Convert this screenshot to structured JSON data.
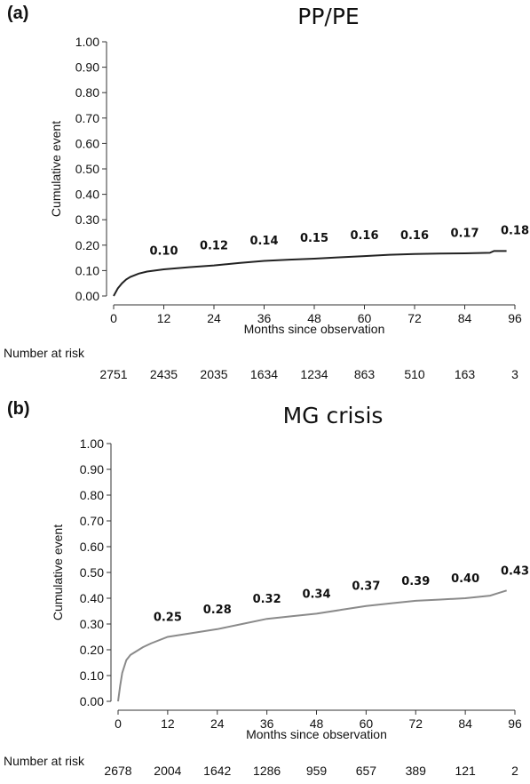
{
  "chart_data": [
    {
      "type": "line",
      "panel_label": "(a)",
      "title": "PP/PE",
      "xlabel": "Months since observation",
      "ylabel": "Cumulative event",
      "xlim": [
        0,
        96
      ],
      "ylim": [
        0,
        1
      ],
      "x_ticks": [
        "0",
        "12",
        "24",
        "36",
        "48",
        "60",
        "72",
        "84",
        "96"
      ],
      "y_ticks": [
        "0.00",
        "0.10",
        "0.20",
        "0.30",
        "0.40",
        "0.50",
        "0.60",
        "0.70",
        "0.80",
        "0.90",
        "1.00"
      ],
      "line_color": "#222222",
      "series": [
        {
          "x": [
            0,
            1,
            2,
            3,
            4,
            6,
            8,
            12,
            18,
            24,
            30,
            36,
            42,
            48,
            54,
            60,
            66,
            72,
            78,
            84,
            90,
            91,
            94
          ],
          "y": [
            0.0,
            0.03,
            0.05,
            0.065,
            0.075,
            0.088,
            0.096,
            0.105,
            0.113,
            0.12,
            0.13,
            0.138,
            0.143,
            0.147,
            0.152,
            0.157,
            0.162,
            0.165,
            0.167,
            0.168,
            0.17,
            0.177,
            0.177
          ]
        }
      ],
      "annotations": [
        {
          "x": 12,
          "y": 0.1,
          "text": "0.10"
        },
        {
          "x": 24,
          "y": 0.12,
          "text": "0.12"
        },
        {
          "x": 36,
          "y": 0.14,
          "text": "0.14"
        },
        {
          "x": 48,
          "y": 0.15,
          "text": "0.15"
        },
        {
          "x": 60,
          "y": 0.16,
          "text": "0.16"
        },
        {
          "x": 72,
          "y": 0.16,
          "text": "0.16"
        },
        {
          "x": 84,
          "y": 0.17,
          "text": "0.17"
        },
        {
          "x": 96,
          "y": 0.18,
          "text": "0.18"
        }
      ],
      "risk_table": {
        "label": "Number at risk",
        "values": [
          "2751",
          "2435",
          "2035",
          "1634",
          "1234",
          "863",
          "510",
          "163",
          "3"
        ]
      }
    },
    {
      "type": "line",
      "panel_label": "(b)",
      "title": "MG crisis",
      "xlabel": "Months since observation",
      "ylabel": "Cumulative event",
      "xlim": [
        0,
        96
      ],
      "ylim": [
        0,
        1
      ],
      "x_ticks": [
        "0",
        "12",
        "24",
        "36",
        "48",
        "60",
        "72",
        "84",
        "96"
      ],
      "y_ticks": [
        "0.00",
        "0.10",
        "0.20",
        "0.30",
        "0.40",
        "0.50",
        "0.60",
        "0.70",
        "0.80",
        "0.90",
        "1.00"
      ],
      "line_color": "#8a8a8a",
      "series": [
        {
          "x": [
            0,
            0.5,
            1,
            2,
            3,
            4,
            6,
            8,
            12,
            18,
            24,
            30,
            36,
            42,
            48,
            54,
            60,
            66,
            72,
            78,
            84,
            90,
            92,
            94
          ],
          "y": [
            0.0,
            0.06,
            0.11,
            0.16,
            0.18,
            0.19,
            0.21,
            0.225,
            0.25,
            0.265,
            0.28,
            0.3,
            0.32,
            0.33,
            0.34,
            0.355,
            0.37,
            0.38,
            0.39,
            0.395,
            0.4,
            0.41,
            0.42,
            0.43
          ]
        }
      ],
      "annotations": [
        {
          "x": 12,
          "y": 0.25,
          "text": "0.25"
        },
        {
          "x": 24,
          "y": 0.28,
          "text": "0.28"
        },
        {
          "x": 36,
          "y": 0.32,
          "text": "0.32"
        },
        {
          "x": 48,
          "y": 0.34,
          "text": "0.34"
        },
        {
          "x": 60,
          "y": 0.37,
          "text": "0.37"
        },
        {
          "x": 72,
          "y": 0.39,
          "text": "0.39"
        },
        {
          "x": 84,
          "y": 0.4,
          "text": "0.40"
        },
        {
          "x": 96,
          "y": 0.43,
          "text": "0.43"
        }
      ],
      "risk_table": {
        "label": "Number at risk",
        "values": [
          "2678",
          "2004",
          "1642",
          "1286",
          "959",
          "657",
          "389",
          "121",
          "2"
        ]
      }
    }
  ]
}
